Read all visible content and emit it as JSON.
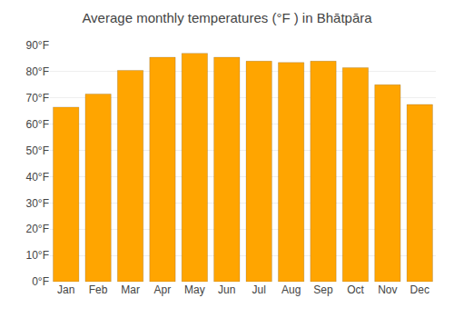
{
  "chart_data": {
    "type": "bar",
    "title": "Average monthly temperatures (°F ) in Bhātpāra",
    "categories": [
      "Jan",
      "Feb",
      "Mar",
      "Apr",
      "May",
      "Jun",
      "Jul",
      "Aug",
      "Sep",
      "Oct",
      "Nov",
      "Dec"
    ],
    "values": [
      66.5,
      71.5,
      80.5,
      85.5,
      87.0,
      85.5,
      84.0,
      83.5,
      84.0,
      81.5,
      75.0,
      67.5
    ],
    "color": "#FFA500",
    "ylim": [
      0,
      90
    ],
    "yticks": [
      {
        "value": 0,
        "label": "0°F"
      },
      {
        "value": 10,
        "label": "10°F"
      },
      {
        "value": 20,
        "label": "20°F"
      },
      {
        "value": 30,
        "label": "30°F"
      },
      {
        "value": 40,
        "label": "40°F"
      },
      {
        "value": 50,
        "label": "50°F"
      },
      {
        "value": 60,
        "label": "60°F"
      },
      {
        "value": 70,
        "label": "70°F"
      },
      {
        "value": 80,
        "label": "80°F"
      },
      {
        "value": 90,
        "label": "90°F"
      }
    ],
    "grid": true
  }
}
